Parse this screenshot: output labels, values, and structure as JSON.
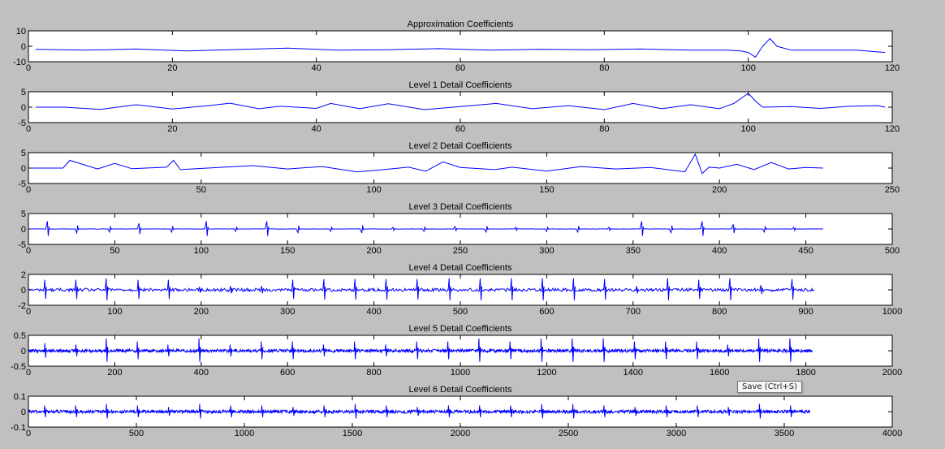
{
  "figure": {
    "background": "#c0c0c0",
    "axes_background": "#ffffff",
    "line_color": "#0000ff"
  },
  "tooltip": "Save (Ctrl+S)",
  "chart_data": [
    {
      "type": "line",
      "title": "Approximation Coefficients",
      "ylim": [
        -10,
        10
      ],
      "yticks": [
        10,
        0,
        -10
      ],
      "xlim": [
        0,
        120
      ],
      "xticks": [
        0,
        20,
        40,
        60,
        80,
        100,
        120
      ],
      "n_points": 120,
      "series": [
        {
          "x": [
            1,
            8,
            15,
            22,
            30,
            36,
            43,
            50,
            57,
            64,
            71,
            78,
            85,
            92,
            97,
            99,
            100,
            101,
            102,
            103,
            104,
            106,
            110,
            115,
            119
          ],
          "y": [
            -2,
            -2.5,
            -1.8,
            -3,
            -2,
            -1.2,
            -2.5,
            -2.2,
            -1.5,
            -2.5,
            -2,
            -2.2,
            -1.8,
            -2.5,
            -2.5,
            -3,
            -4,
            -7,
            0,
            5,
            0,
            -2.5,
            -2.5,
            -2.5,
            -4
          ]
        }
      ]
    },
    {
      "type": "line",
      "title": "Level 1 Detail Coefficients",
      "ylim": [
        -5,
        5
      ],
      "yticks": [
        5,
        0,
        -5
      ],
      "xlim": [
        0,
        120
      ],
      "xticks": [
        0,
        20,
        40,
        60,
        80,
        100,
        120
      ],
      "n_points": 120,
      "series": [
        {
          "x": [
            1,
            5,
            10,
            15,
            20,
            25,
            28,
            32,
            35,
            40,
            42,
            46,
            50,
            55,
            60,
            65,
            70,
            75,
            80,
            84,
            88,
            92,
            96,
            98,
            100,
            101,
            102,
            106,
            110,
            114,
            118,
            119
          ],
          "y": [
            0,
            0,
            -0.7,
            0.8,
            -0.6,
            0.5,
            1.3,
            -0.5,
            0.3,
            -0.4,
            1.2,
            -0.5,
            1.1,
            -0.8,
            0.2,
            1.2,
            -0.5,
            0.5,
            -0.8,
            1.2,
            -0.5,
            0.8,
            -0.5,
            1.2,
            4.5,
            2,
            0,
            0.2,
            -0.4,
            0.3,
            0.5,
            0
          ]
        }
      ]
    },
    {
      "type": "line",
      "title": "Level 2 Detail Coefficients",
      "ylim": [
        -5,
        5
      ],
      "yticks": [
        5,
        0,
        -5
      ],
      "xlim": [
        0,
        250
      ],
      "xticks": [
        0,
        50,
        100,
        150,
        200,
        250
      ],
      "n_points": 230,
      "series": [
        {
          "x": [
            1,
            10,
            12,
            20,
            25,
            30,
            40,
            42,
            44,
            55,
            65,
            75,
            85,
            95,
            100,
            110,
            115,
            120,
            125,
            135,
            140,
            150,
            160,
            170,
            180,
            190,
            193,
            195,
            197,
            200,
            205,
            210,
            215,
            220,
            225,
            230
          ],
          "y": [
            0,
            0,
            2.5,
            -0.3,
            1.5,
            -0.2,
            0.3,
            2.5,
            -0.5,
            0.2,
            0.8,
            -0.3,
            0.5,
            -1.2,
            -0.8,
            0.3,
            -1,
            2,
            0.2,
            -0.5,
            0.3,
            -1,
            0.5,
            -0.3,
            0.2,
            -1.2,
            4.5,
            -1.8,
            0.3,
            0,
            1.2,
            -0.5,
            1.8,
            -0.3,
            0.2,
            0
          ]
        }
      ]
    },
    {
      "type": "line",
      "title": "Level 3 Detail Coefficients",
      "ylim": [
        -5,
        5
      ],
      "yticks": [
        5,
        0,
        -5
      ],
      "xlim": [
        0,
        500
      ],
      "xticks": [
        0,
        50,
        100,
        150,
        200,
        250,
        300,
        350,
        400,
        450,
        500
      ],
      "n_points": 460,
      "spikes": {
        "x": [
          11,
          28,
          47,
          64,
          83,
          103,
          120,
          138,
          156,
          175,
          193,
          211,
          229,
          247,
          265,
          282,
          300,
          318,
          336,
          355,
          372,
          390,
          408,
          426,
          443
        ],
        "y": [
          2.5,
          -1.3,
          -1,
          1.8,
          -1,
          2.5,
          -0.8,
          2.5,
          -1.2,
          -0.8,
          -1.3,
          0.5,
          -0.8,
          0.8,
          -1,
          0.5,
          -0.8,
          -1,
          0.5,
          2.5,
          -1.2,
          2.5,
          1.5,
          -1,
          0.5
        ]
      }
    },
    {
      "type": "line",
      "title": "Level 4 Detail Coefficients",
      "ylim": [
        -2,
        2
      ],
      "yticks": [
        2,
        0,
        -2
      ],
      "xlim": [
        0,
        1000
      ],
      "xticks": [
        0,
        100,
        200,
        300,
        400,
        500,
        600,
        700,
        800,
        900,
        1000
      ],
      "n_points": 910,
      "spikes": {
        "x": [
          19,
          55,
          90,
          127,
          162,
          198,
          234,
          270,
          306,
          342,
          378,
          414,
          450,
          487,
          523,
          559,
          595,
          631,
          667,
          704,
          740,
          776,
          812,
          848,
          884
        ],
        "y": [
          1.3,
          1.3,
          1.5,
          1.3,
          1.3,
          0.4,
          0.5,
          0.5,
          1.3,
          1.4,
          1.4,
          1.4,
          1.4,
          1.5,
          1.5,
          1.5,
          1.5,
          1.5,
          1.4,
          0.5,
          1.5,
          1.3,
          1.5,
          0.6,
          1.4
        ]
      }
    },
    {
      "type": "line",
      "title": "Level 5 Detail Coefficients",
      "ylim": [
        -0.5,
        0.5
      ],
      "yticks": [
        0.5,
        0,
        -0.5
      ],
      "xlim": [
        0,
        2000
      ],
      "xticks": [
        0,
        200,
        400,
        600,
        800,
        1000,
        1200,
        1400,
        1600,
        1800,
        2000
      ],
      "n_points": 1815,
      "spikes": {
        "x": [
          38,
          110,
          180,
          252,
          323,
          395,
          467,
          539,
          611,
          683,
          755,
          827,
          899,
          971,
          1043,
          1115,
          1187,
          1259,
          1331,
          1403,
          1475,
          1547,
          1619,
          1691,
          1763
        ],
        "y": [
          0.25,
          0.2,
          0.4,
          0.3,
          0.2,
          0.4,
          0.2,
          0.3,
          0.3,
          0.2,
          0.3,
          0.2,
          0.3,
          0.3,
          0.4,
          0.3,
          0.4,
          0.4,
          0.4,
          0.3,
          0.3,
          0.3,
          0.2,
          0.4,
          0.4
        ]
      }
    },
    {
      "type": "line",
      "title": "Level 6 Detail Coefficients",
      "ylim": [
        -0.1,
        0.1
      ],
      "yticks": [
        0.1,
        0,
        -0.1
      ],
      "xlim": [
        0,
        4000
      ],
      "xticks": [
        0,
        500,
        1000,
        1500,
        2000,
        2500,
        3000,
        3500,
        4000
      ],
      "n_points": 3620,
      "spikes": {
        "x": [
          75,
          220,
          362,
          506,
          650,
          794,
          938,
          1082,
          1226,
          1370,
          1514,
          1658,
          1802,
          1946,
          2090,
          2234,
          2378,
          2522,
          2666,
          2810,
          2954,
          3098,
          3242,
          3386,
          3530
        ],
        "y": [
          0.04,
          0.04,
          0.05,
          0.04,
          0.03,
          0.05,
          0.04,
          0.04,
          0.03,
          0.04,
          0.05,
          0.04,
          0.03,
          0.04,
          0.04,
          0.04,
          0.05,
          0.05,
          0.04,
          0.03,
          0.04,
          0.04,
          0.03,
          0.05,
          0.04
        ]
      }
    }
  ]
}
